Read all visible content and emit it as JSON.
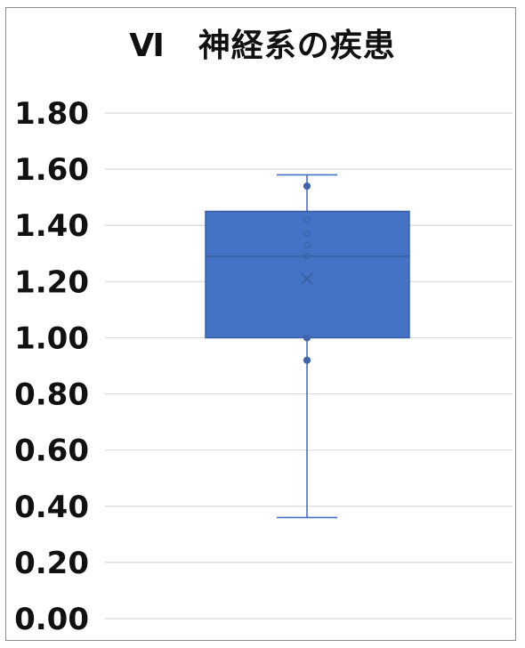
{
  "chart_data": {
    "type": "box",
    "title": "Ⅵ　神経系の疾患",
    "xlabel": "",
    "ylabel": "",
    "ylim": [
      0,
      1.8
    ],
    "yticks": [
      "0.00",
      "0.20",
      "0.40",
      "0.60",
      "0.80",
      "1.00",
      "1.20",
      "1.40",
      "1.60",
      "1.80"
    ],
    "grid": true,
    "box": {
      "min": 0.36,
      "q1": 1.0,
      "median": 1.29,
      "q3": 1.45,
      "max": 1.58,
      "mean": 1.21
    },
    "points": [
      1.54,
      1.42,
      1.37,
      1.33,
      1.29,
      1.0,
      0.92
    ],
    "colors": {
      "box_fill": "#4472c4",
      "box_stroke": "#3a5fa0",
      "whisker": "#4472c4",
      "grid": "#d9d9d9"
    }
  }
}
